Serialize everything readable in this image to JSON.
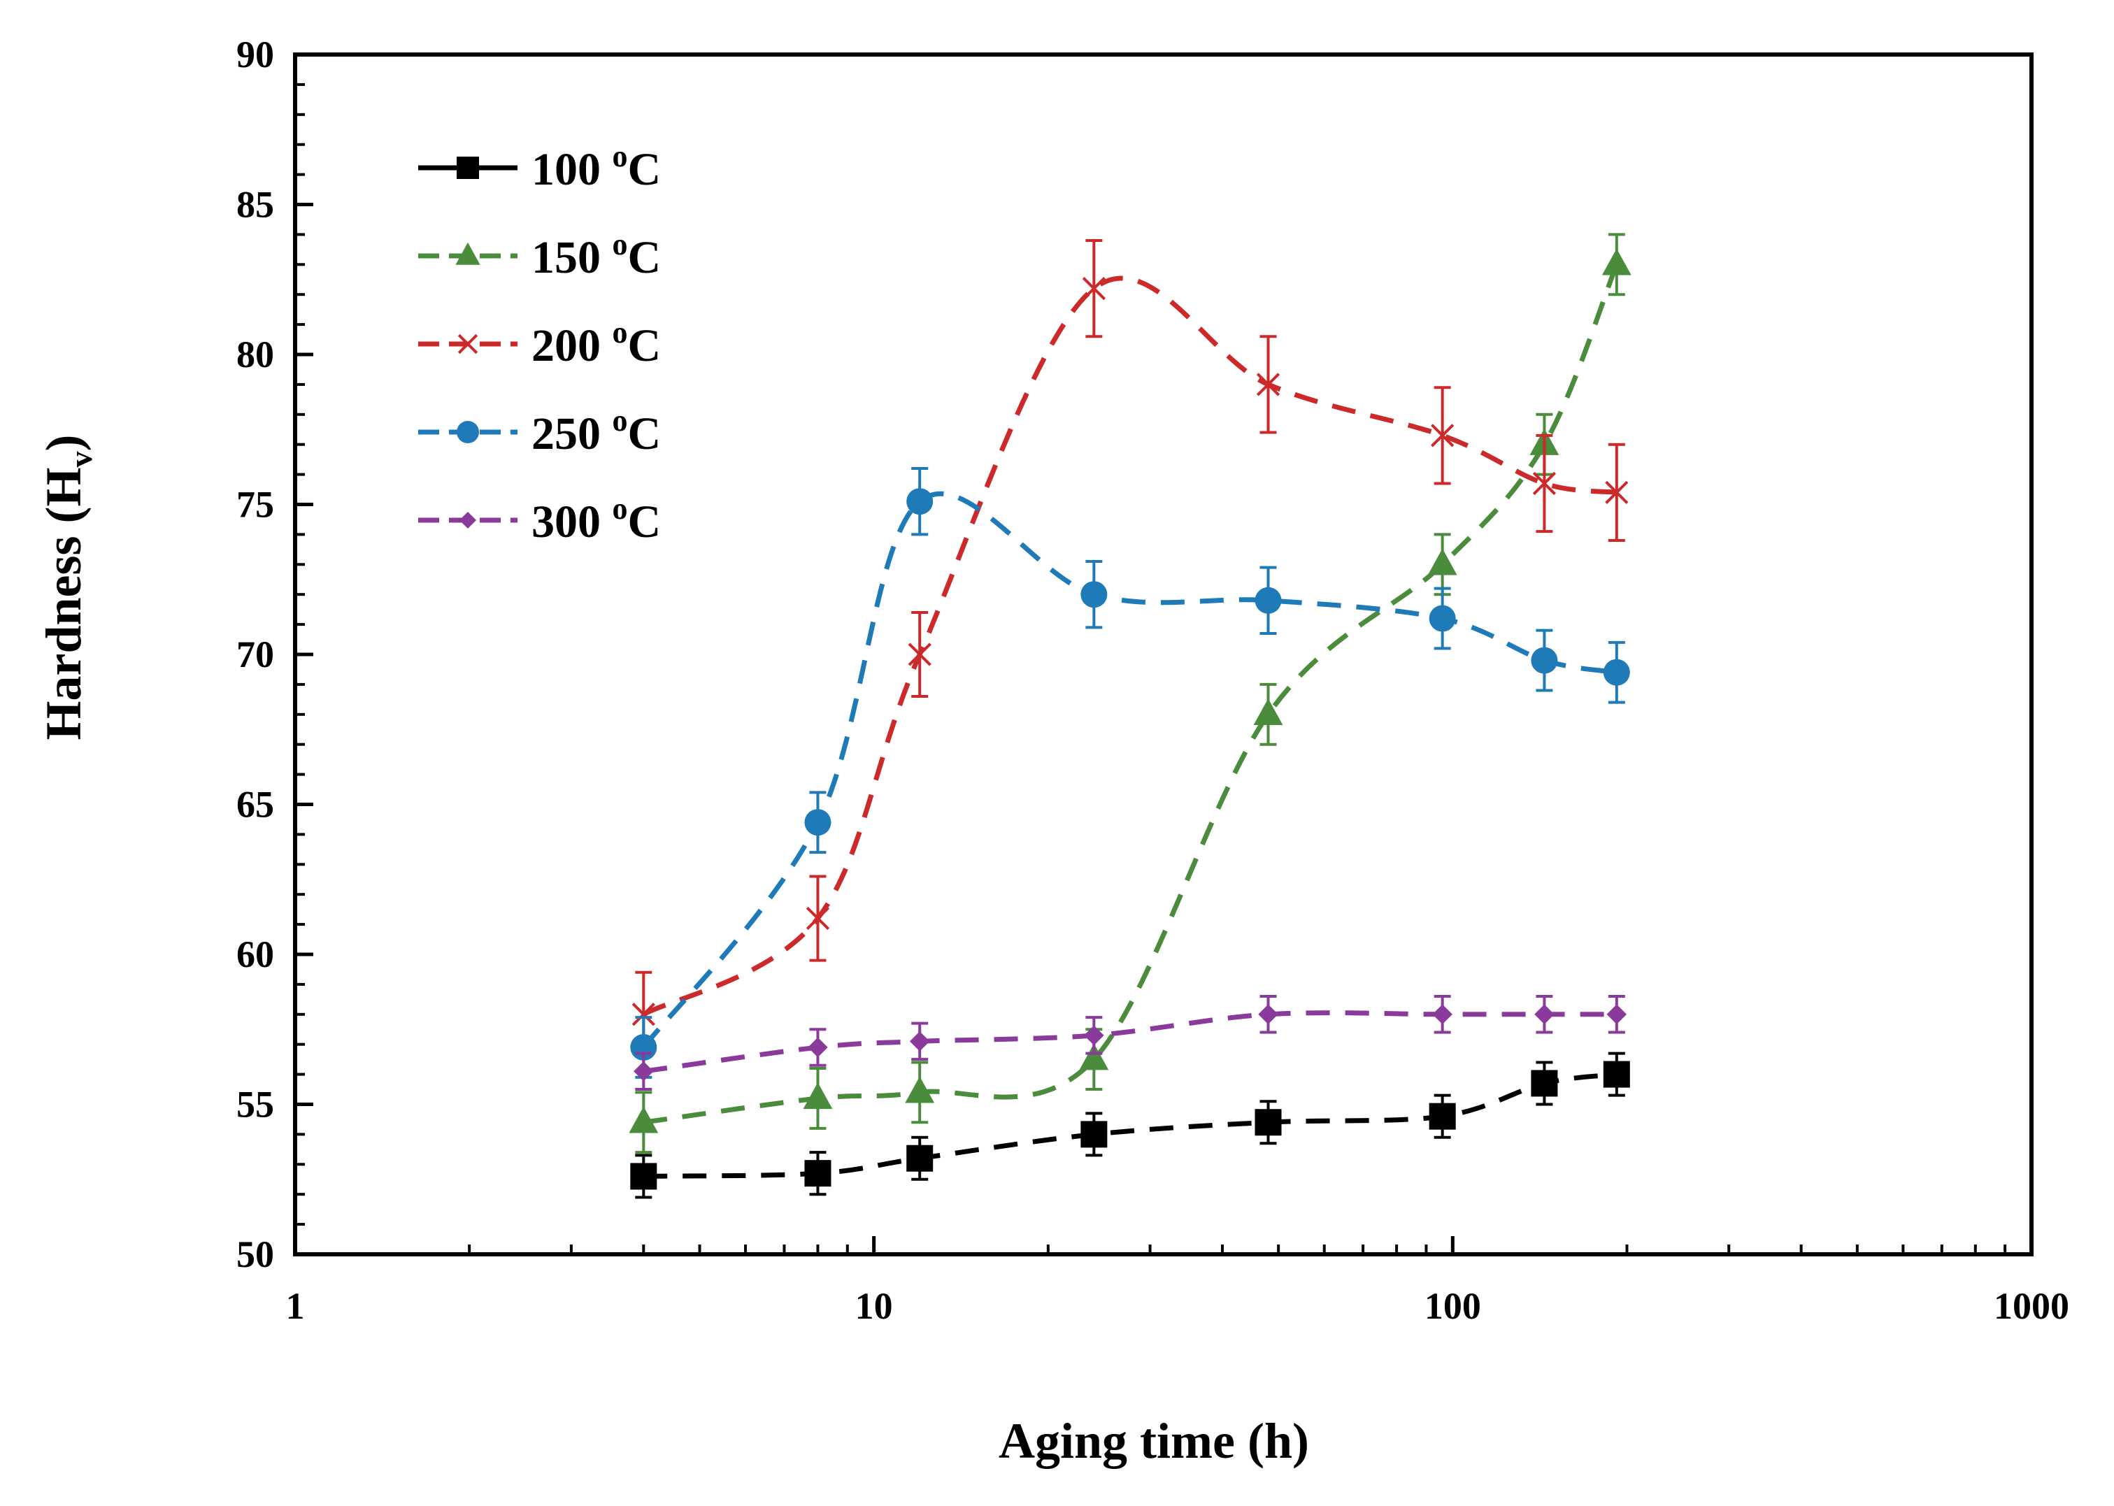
{
  "chart_data": {
    "type": "line",
    "title": "",
    "xlabel": "Aging time (h)",
    "ylabel_main": "Hardness (H",
    "ylabel_sub": "v",
    "ylabel_close": ")",
    "ylabel": "Hardness (Hv)",
    "x_scale": "log",
    "xlim": [
      1,
      1000
    ],
    "ylim": [
      50,
      90
    ],
    "x_ticks": [
      1,
      10,
      100,
      1000
    ],
    "x_tick_labels": [
      "1",
      "10",
      "100",
      "1000"
    ],
    "y_ticks": [
      50,
      55,
      60,
      65,
      70,
      75,
      80,
      85,
      90
    ],
    "y_tick_labels": [
      "50",
      "55",
      "60",
      "65",
      "70",
      "75",
      "80",
      "85",
      "90"
    ],
    "grid": false,
    "legend_position": "top-left",
    "x": [
      4,
      8,
      12,
      24,
      48,
      96,
      144,
      192
    ],
    "series": [
      {
        "name": "100 °C",
        "label_num": "100",
        "label_sup": "o",
        "label_unit": "C",
        "color": "#000000",
        "marker": "square",
        "values": [
          52.6,
          52.7,
          53.2,
          54.0,
          54.4,
          54.6,
          55.7,
          56.0
        ],
        "errors": [
          0.7,
          0.7,
          0.7,
          0.7,
          0.7,
          0.7,
          0.7,
          0.7
        ]
      },
      {
        "name": "150 °C",
        "label_num": "150",
        "label_sup": "o",
        "label_unit": "C",
        "color": "#4a8c3c",
        "marker": "triangle",
        "values": [
          54.4,
          55.2,
          55.4,
          56.5,
          68.0,
          73.0,
          77.0,
          83.0
        ],
        "errors": [
          1.0,
          1.0,
          1.0,
          1.0,
          1.0,
          1.0,
          1.0,
          1.0
        ]
      },
      {
        "name": "200 °C",
        "label_num": "200",
        "label_sup": "o",
        "label_unit": "C",
        "color": "#cc2a2a",
        "marker": "x",
        "values": [
          58.0,
          61.2,
          70.0,
          82.2,
          79.0,
          77.3,
          75.7,
          75.4
        ],
        "errors": [
          1.4,
          1.4,
          1.4,
          1.6,
          1.6,
          1.6,
          1.6,
          1.6
        ]
      },
      {
        "name": "250 °C",
        "label_num": "250",
        "label_sup": "o",
        "label_unit": "C",
        "color": "#1f7ab8",
        "marker": "circle",
        "values": [
          56.9,
          64.4,
          75.1,
          72.0,
          71.8,
          71.2,
          69.8,
          69.4
        ],
        "errors": [
          1.0,
          1.0,
          1.1,
          1.1,
          1.1,
          1.0,
          1.0,
          1.0
        ]
      },
      {
        "name": "300 °C",
        "label_num": "300",
        "label_sup": "o",
        "label_unit": "C",
        "color": "#8a3a9a",
        "marker": "diamond",
        "values": [
          56.1,
          56.9,
          57.1,
          57.3,
          58.0,
          58.0,
          58.0,
          58.0
        ],
        "errors": [
          0.6,
          0.6,
          0.6,
          0.6,
          0.6,
          0.6,
          0.6,
          0.6
        ]
      }
    ]
  }
}
